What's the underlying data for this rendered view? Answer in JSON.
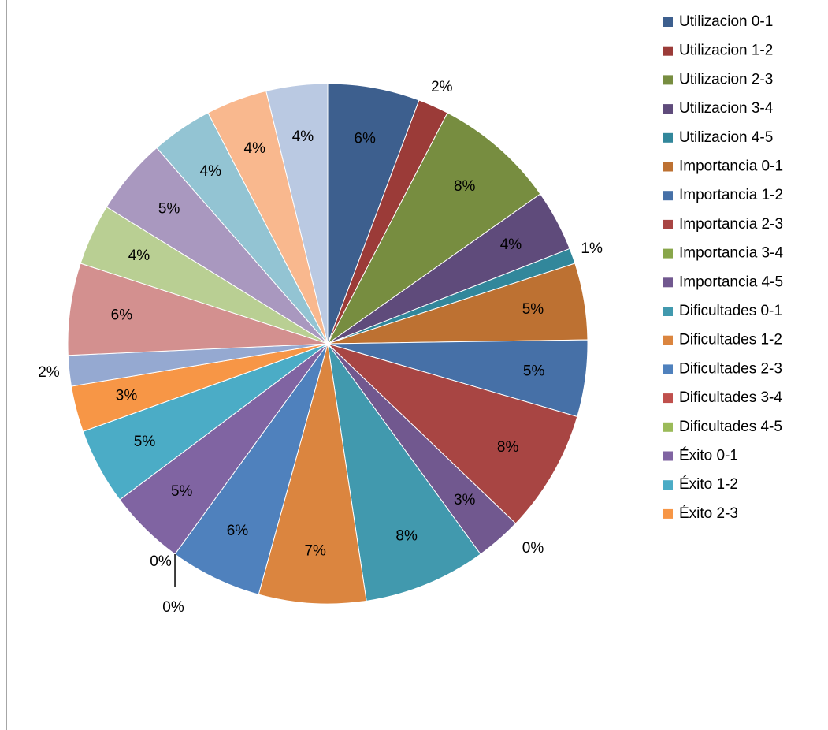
{
  "chart_data": {
    "type": "pie",
    "title": "",
    "legend_position": "right",
    "slices": [
      {
        "name": "Utilizacion 0-1",
        "value": 6,
        "label": "6%",
        "color": "#3d5f8e"
      },
      {
        "name": "Utilizacion 1-2",
        "value": 2,
        "label": "2%",
        "color": "#9b3b38"
      },
      {
        "name": "Utilizacion 2-3",
        "value": 8,
        "label": "8%",
        "color": "#778d40"
      },
      {
        "name": "Utilizacion 3-4",
        "value": 4,
        "label": "4%",
        "color": "#5f4b7b"
      },
      {
        "name": "Utilizacion 4-5",
        "value": 1,
        "label": "1%",
        "color": "#32879b"
      },
      {
        "name": "Importancia 0-1",
        "value": 5,
        "label": "5%",
        "color": "#bd7132"
      },
      {
        "name": "Importancia 1-2",
        "value": 5,
        "label": "5%",
        "color": "#4670a7"
      },
      {
        "name": "Importancia 2-3",
        "value": 8,
        "label": "8%",
        "color": "#a84543"
      },
      {
        "name": "Importancia 3-4",
        "value": 0,
        "label": "0%",
        "color": "#88a64a"
      },
      {
        "name": "Importancia 4-5",
        "value": 3,
        "label": "3%",
        "color": "#71588f"
      },
      {
        "name": "Dificultades 0-1",
        "value": 8,
        "label": "8%",
        "color": "#4199ae"
      },
      {
        "name": "Dificultades 1-2",
        "value": 7,
        "label": "7%",
        "color": "#db853f"
      },
      {
        "name": "Dificultades 2-3",
        "value": 6,
        "label": "6%",
        "color": "#4f81bd"
      },
      {
        "name": "Dificultades 3-4",
        "value": 0,
        "label": "0%",
        "color": "#c0504d"
      },
      {
        "name": "Dificultades 4-5",
        "value": 0,
        "label": "0%",
        "color": "#9bbb59"
      },
      {
        "name": "Éxito 0-1",
        "value": 5,
        "label": "5%",
        "color": "#8064a2"
      },
      {
        "name": "Éxito 1-2",
        "value": 5,
        "label": "5%",
        "color": "#4bacc6"
      },
      {
        "name": "Éxito 2-3",
        "value": 3,
        "label": "3%",
        "color": "#f79646"
      },
      {
        "name": "",
        "value": 2,
        "label": "2%",
        "color": "#95a9d1"
      },
      {
        "name": "",
        "value": 6,
        "label": "6%",
        "color": "#d3908f"
      },
      {
        "name": "",
        "value": 4,
        "label": "4%",
        "color": "#b9cf93"
      },
      {
        "name": "",
        "value": 5,
        "label": "5%",
        "color": "#a998bf"
      },
      {
        "name": "",
        "value": 4,
        "label": "4%",
        "color": "#93c4d3"
      },
      {
        "name": "",
        "value": 4,
        "label": "4%",
        "color": "#f9b88e"
      },
      {
        "name": "",
        "value": 4,
        "label": "4%",
        "color": "#bac9e2"
      }
    ]
  }
}
